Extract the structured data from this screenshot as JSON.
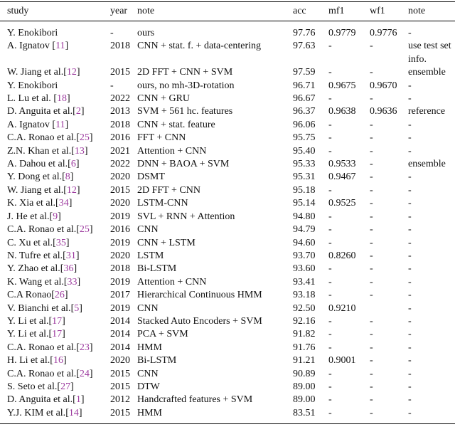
{
  "colors": {
    "citation_link": "#9c3a9e",
    "text": "#101010",
    "rule": "#000000",
    "background": "#ffffff"
  },
  "table": {
    "columns": [
      {
        "key": "study",
        "label": "study"
      },
      {
        "key": "year",
        "label": "year"
      },
      {
        "key": "note",
        "label": "note"
      },
      {
        "key": "acc",
        "label": "acc"
      },
      {
        "key": "mf1",
        "label": "mf1"
      },
      {
        "key": "wf1",
        "label": "wf1"
      },
      {
        "key": "note2",
        "label": "note"
      }
    ],
    "rows": [
      {
        "study_pre": "Y. Enokibori",
        "cite": "",
        "year": "-",
        "note": "ours",
        "acc": "97.76",
        "mf1": "0.9779",
        "wf1": "0.9776",
        "note2": "-"
      },
      {
        "study_pre": "A. Ignatov ",
        "cite": "11",
        "year": "2018",
        "note": "CNN + stat. f. + data-centering",
        "acc": "97.63",
        "mf1": "-",
        "wf1": "-",
        "note2": "use test set info."
      },
      {
        "study_pre": "W. Jiang et al.",
        "cite": "12",
        "year": "2015",
        "note": "2D FFT + CNN + SVM",
        "acc": "97.59",
        "mf1": "-",
        "wf1": "-",
        "note2": "ensemble"
      },
      {
        "study_pre": "Y. Enokibori",
        "cite": "",
        "year": "-",
        "note": "ours, no mh-3D-rotation",
        "acc": "96.71",
        "mf1": "0.9675",
        "wf1": "0.9670",
        "note2": "-"
      },
      {
        "study_pre": "L. Lu et al. ",
        "cite": "18",
        "year": "2022",
        "note": "CNN + GRU",
        "acc": "96.67",
        "mf1": "-",
        "wf1": "-",
        "note2": "-"
      },
      {
        "study_pre": "D. Anguita et al.",
        "cite": "2",
        "year": "2013",
        "note": "SVM + 561 hc. features",
        "acc": "96.37",
        "mf1": "0.9638",
        "wf1": "0.9636",
        "note2": "reference"
      },
      {
        "study_pre": "A. Ignatov ",
        "cite": "11",
        "year": "2018",
        "note": "CNN + stat. feature",
        "acc": "96.06",
        "mf1": "-",
        "wf1": "-",
        "note2": "-"
      },
      {
        "study_pre": "C.A. Ronao et al.",
        "cite": "25",
        "year": "2016",
        "note": "FFT + CNN",
        "acc": "95.75",
        "mf1": "-",
        "wf1": "-",
        "note2": "-"
      },
      {
        "study_pre": "Z.N. Khan et al.",
        "cite": "13",
        "year": "2021",
        "note": "Attention + CNN",
        "acc": "95.40",
        "mf1": "-",
        "wf1": "-",
        "note2": "-"
      },
      {
        "study_pre": "A. Dahou et al.",
        "cite": "6",
        "year": "2022",
        "note": "DNN + BAOA + SVM",
        "acc": "95.33",
        "mf1": "0.9533",
        "wf1": "-",
        "note2": "ensemble"
      },
      {
        "study_pre": "Y. Dong et al.",
        "cite": "8",
        "year": "2020",
        "note": "DSMT",
        "acc": "95.31",
        "mf1": "0.9467",
        "wf1": "-",
        "note2": "-"
      },
      {
        "study_pre": "W. Jiang et al.",
        "cite": "12",
        "year": "2015",
        "note": "2D FFT + CNN",
        "acc": "95.18",
        "mf1": "-",
        "wf1": "-",
        "note2": "-"
      },
      {
        "study_pre": "K. Xia et al.",
        "cite": "34",
        "year": "2020",
        "note": "LSTM-CNN",
        "acc": "95.14",
        "mf1": "0.9525",
        "wf1": "-",
        "note2": "-"
      },
      {
        "study_pre": "J. He et al.",
        "cite": "9",
        "year": "2019",
        "note": "SVL + RNN + Attention",
        "acc": "94.80",
        "mf1": "-",
        "wf1": "-",
        "note2": "-"
      },
      {
        "study_pre": "C.A. Ronao et al.",
        "cite": "25",
        "year": "2016",
        "note": "CNN",
        "acc": "94.79",
        "mf1": "-",
        "wf1": "-",
        "note2": "-"
      },
      {
        "study_pre": "C. Xu et al.",
        "cite": "35",
        "year": "2019",
        "note": "CNN + LSTM",
        "acc": "94.60",
        "mf1": "-",
        "wf1": "-",
        "note2": "-"
      },
      {
        "study_pre": "N. Tufre et al.",
        "cite": "31",
        "year": "2020",
        "note": "LSTM",
        "acc": "93.70",
        "mf1": "0.8260",
        "wf1": "-",
        "note2": "-"
      },
      {
        "study_pre": "Y. Zhao et al.",
        "cite": "36",
        "year": "2018",
        "note": "Bi-LSTM",
        "acc": "93.60",
        "mf1": "-",
        "wf1": "-",
        "note2": "-"
      },
      {
        "study_pre": "K. Wang et al.",
        "cite": "33",
        "year": "2019",
        "note": "Attention + CNN",
        "acc": "93.41",
        "mf1": "-",
        "wf1": "-",
        "note2": "-"
      },
      {
        "study_pre": "C.A Ronao",
        "cite": "26",
        "year": "2017",
        "note": "Hierarchical Continuous HMM",
        "acc": "93.18",
        "mf1": "-",
        "wf1": "-",
        "note2": "-"
      },
      {
        "study_pre": "V. Bianchi et al.",
        "cite": "5",
        "year": "2019",
        "note": "CNN",
        "acc": "92.50",
        "mf1": "0.9210",
        "wf1": "",
        "note2": "-"
      },
      {
        "study_pre": "Y. Li et al.",
        "cite": "17",
        "year": "2014",
        "note": "Stacked Auto Encoders + SVM",
        "acc": "92.16",
        "mf1": "-",
        "wf1": "-",
        "note2": "-"
      },
      {
        "study_pre": "Y. Li et al.",
        "cite": "17",
        "year": "2014",
        "note": "PCA + SVM",
        "acc": "91.82",
        "mf1": "-",
        "wf1": "-",
        "note2": "-"
      },
      {
        "study_pre": "C.A. Ronao et al.",
        "cite": "23",
        "year": "2014",
        "note": "HMM",
        "acc": "91.76",
        "mf1": "-",
        "wf1": "-",
        "note2": "-"
      },
      {
        "study_pre": "H. Li et al.",
        "cite": "16",
        "year": "2020",
        "note": "Bi-LSTM",
        "acc": "91.21",
        "mf1": "0.9001",
        "wf1": "-",
        "note2": "-"
      },
      {
        "study_pre": "C.A. Ronao et al.",
        "cite": "24",
        "year": "2015",
        "note": "CNN",
        "acc": "90.89",
        "mf1": "-",
        "wf1": "-",
        "note2": "-"
      },
      {
        "study_pre": "S. Seto et al.",
        "cite": "27",
        "year": "2015",
        "note": "DTW",
        "acc": "89.00",
        "mf1": "-",
        "wf1": "-",
        "note2": "-"
      },
      {
        "study_pre": "D. Anguita et al.",
        "cite": "1",
        "year": "2012",
        "note": "Handcrafted features + SVM",
        "acc": "89.00",
        "mf1": "-",
        "wf1": "-",
        "note2": "-"
      },
      {
        "study_pre": "Y.J. KIM et al.",
        "cite": "14",
        "year": "2015",
        "note": "HMM",
        "acc": "83.51",
        "mf1": "-",
        "wf1": "-",
        "note2": "-"
      }
    ]
  }
}
